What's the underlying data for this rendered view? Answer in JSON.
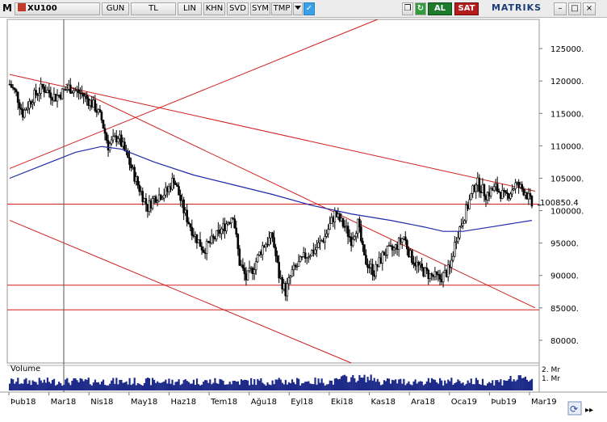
{
  "toolbar": {
    "app_icon": "M",
    "symbol": "XU100",
    "buttons": [
      "GUN",
      "TL",
      "LIN",
      "KHN",
      "SVD",
      "SYM",
      "TMP"
    ],
    "dropdown_icon": "triangle-down-icon",
    "twitter_icon": "twitter-bird-icon",
    "copy_icon": "copy-icon",
    "refresh_icon": "refresh-icon",
    "buy_label": "AL",
    "sell_label": "SAT",
    "brand": "MATRIKS",
    "window_controls": [
      "–",
      "□",
      "×"
    ]
  },
  "volume_label": "Volume",
  "colors": {
    "candle": "#000000",
    "trend_line": "#d11f1f",
    "moving_average": "#1f2aa8",
    "volume": "#1d2a8a",
    "cursor": "#555555",
    "price_tag_bg": "#ffffff"
  },
  "chart_data": {
    "type": "candlestick",
    "symbol": "XU100",
    "y_ticks": [
      125000,
      120000,
      115000,
      110000,
      105000,
      100000,
      95000,
      90000,
      85000,
      80000
    ],
    "y_tick_labels": [
      "125000.",
      "120000.",
      "115000.",
      "110000.",
      "105000.",
      "100000.",
      "95000.",
      "90000.",
      "85000.",
      "80000."
    ],
    "ylim": [
      76500,
      129500
    ],
    "last_price": 100850.4,
    "last_price_label": "100850.4",
    "x_labels": [
      "Þub18",
      "Mar18",
      "Nis18",
      "May18",
      "Haz18",
      "Tem18",
      "Ağu18",
      "Eyl18",
      "Eki18",
      "Kas18",
      "Ara18",
      "Oca19",
      "Þub19",
      "Mar19"
    ],
    "close_series": [
      {
        "t": 0,
        "v": 119500
      },
      {
        "t": 2,
        "v": 118000
      },
      {
        "t": 4,
        "v": 115000
      },
      {
        "t": 7,
        "v": 117500
      },
      {
        "t": 10,
        "v": 119000
      },
      {
        "t": 14,
        "v": 117500
      },
      {
        "t": 18,
        "v": 119000
      },
      {
        "t": 22,
        "v": 118000
      },
      {
        "t": 26,
        "v": 116000
      },
      {
        "t": 28,
        "v": 114000
      },
      {
        "t": 30,
        "v": 110000
      },
      {
        "t": 33,
        "v": 111500
      },
      {
        "t": 36,
        "v": 108000
      },
      {
        "t": 39,
        "v": 104000
      },
      {
        "t": 42,
        "v": 100500
      },
      {
        "t": 44,
        "v": 102000
      },
      {
        "t": 48,
        "v": 103000
      },
      {
        "t": 50,
        "v": 105000
      },
      {
        "t": 53,
        "v": 100000
      },
      {
        "t": 56,
        "v": 96500
      },
      {
        "t": 59,
        "v": 94000
      },
      {
        "t": 62,
        "v": 95500
      },
      {
        "t": 66,
        "v": 98000
      },
      {
        "t": 68,
        "v": 99500
      },
      {
        "t": 70,
        "v": 92000
      },
      {
        "t": 72,
        "v": 89500
      },
      {
        "t": 74,
        "v": 91000
      },
      {
        "t": 77,
        "v": 94500
      },
      {
        "t": 80,
        "v": 96000
      },
      {
        "t": 82,
        "v": 90000
      },
      {
        "t": 84,
        "v": 87500
      },
      {
        "t": 86,
        "v": 90500
      },
      {
        "t": 90,
        "v": 93000
      },
      {
        "t": 93,
        "v": 94000
      },
      {
        "t": 96,
        "v": 96000
      },
      {
        "t": 99,
        "v": 99500
      },
      {
        "t": 102,
        "v": 97500
      },
      {
        "t": 104,
        "v": 95500
      },
      {
        "t": 106,
        "v": 98000
      },
      {
        "t": 108,
        "v": 92500
      },
      {
        "t": 111,
        "v": 90500
      },
      {
        "t": 114,
        "v": 93500
      },
      {
        "t": 117,
        "v": 94000
      },
      {
        "t": 120,
        "v": 96000
      },
      {
        "t": 122,
        "v": 93000
      },
      {
        "t": 125,
        "v": 91000
      },
      {
        "t": 128,
        "v": 90000
      },
      {
        "t": 131,
        "v": 89500
      },
      {
        "t": 134,
        "v": 91000
      },
      {
        "t": 136,
        "v": 96000
      },
      {
        "t": 139,
        "v": 100000
      },
      {
        "t": 142,
        "v": 104500
      },
      {
        "t": 145,
        "v": 102500
      },
      {
        "t": 148,
        "v": 103500
      },
      {
        "t": 151,
        "v": 102000
      },
      {
        "t": 154,
        "v": 104000
      },
      {
        "t": 157,
        "v": 103000
      },
      {
        "t": 159,
        "v": 100850
      }
    ],
    "moving_average": [
      {
        "t": 0,
        "v": 105000
      },
      {
        "t": 10,
        "v": 107000
      },
      {
        "t": 20,
        "v": 109000
      },
      {
        "t": 28,
        "v": 109900
      },
      {
        "t": 34,
        "v": 109500
      },
      {
        "t": 44,
        "v": 107500
      },
      {
        "t": 56,
        "v": 105500
      },
      {
        "t": 68,
        "v": 104000
      },
      {
        "t": 80,
        "v": 102500
      },
      {
        "t": 92,
        "v": 100800
      },
      {
        "t": 104,
        "v": 99500
      },
      {
        "t": 116,
        "v": 98500
      },
      {
        "t": 126,
        "v": 97500
      },
      {
        "t": 132,
        "v": 96800
      },
      {
        "t": 138,
        "v": 96800
      },
      {
        "t": 148,
        "v": 97600
      },
      {
        "t": 159,
        "v": 98500
      }
    ],
    "trend_lines": [
      {
        "from": {
          "t": 0,
          "v": 121000
        },
        "to": {
          "t": 160,
          "v": 103000
        }
      },
      {
        "from": {
          "t": 0,
          "v": 106500
        },
        "to": {
          "t": 112,
          "v": 129500
        }
      },
      {
        "from": {
          "t": 17,
          "v": 119500
        },
        "to": {
          "t": 160,
          "v": 85000
        }
      },
      {
        "from": {
          "t": 0,
          "v": 98500
        },
        "to": {
          "t": 104,
          "v": 76500
        }
      }
    ],
    "horizontal_levels": [
      101000,
      88500,
      84700
    ],
    "volume_ticks": [
      "2. Mr",
      "1. Mr"
    ],
    "ma_color": "#1f2aa8",
    "trend_color": "#d11f1f",
    "grid": false,
    "legend": "none"
  }
}
